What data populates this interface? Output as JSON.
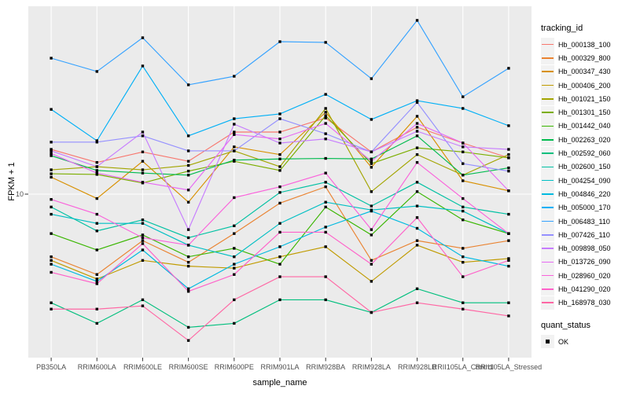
{
  "figure": {
    "x_axis": {
      "title": "sample_name"
    },
    "y_axis": {
      "title": "FPKM + 1",
      "tick_label": "10"
    },
    "legend": {
      "tracking_title": "tracking_id",
      "quant_title": "quant_status",
      "quant_items": [
        {
          "label": "OK"
        }
      ]
    },
    "style": {
      "panel_bg": "#EBEBEB",
      "grid_color": "#FFFFFF",
      "tick_color": "#333333",
      "tick_text_color": "#4D4D4D",
      "marker_color": "#000000",
      "legend_key_bg": "#F2F2F2"
    }
  },
  "chart_data": {
    "type": "line",
    "title": "",
    "xlabel": "sample_name",
    "ylabel": "FPKM + 1",
    "y_scale": "log10",
    "ylim": [
      1.5,
      90
    ],
    "y_ticks": [
      10
    ],
    "grid": "major-white-on-gray",
    "legend_position": "right",
    "marker": "black-square",
    "categories": [
      "PB350LA",
      "RRIM600LA",
      "RRIM600LE",
      "RRIM600SE",
      "RRIM600PE",
      "RRIM901LA",
      "RRIM928BA",
      "RRIM928LA",
      "RRIM928LB",
      "RRII105LA_Control",
      "RRII105LA_Stressed"
    ],
    "series": [
      {
        "name": "Hb_000138_100",
        "color": "#F8766D",
        "values": [
          16.9,
          14.5,
          16.4,
          14.7,
          20.7,
          20.7,
          24.4,
          16.4,
          21.9,
          18.2,
          15.3
        ]
      },
      {
        "name": "Hb_000329_800",
        "color": "#EA8331",
        "values": [
          4.8,
          3.9,
          5.8,
          4.5,
          6.3,
          9.0,
          10.9,
          4.6,
          5.8,
          5.3,
          5.8
        ]
      },
      {
        "name": "Hb_000347_430",
        "color": "#D89000",
        "values": [
          12.2,
          9.5,
          14.7,
          9.1,
          17.4,
          15.9,
          26.1,
          13.7,
          24.9,
          11.7,
          10.4
        ]
      },
      {
        "name": "Hb_000406_200",
        "color": "#C09B00",
        "values": [
          4.6,
          3.7,
          4.6,
          4.3,
          4.2,
          4.8,
          5.4,
          3.6,
          5.5,
          4.5,
          4.7
        ]
      },
      {
        "name": "Hb_001021_150",
        "color": "#A3A500",
        "values": [
          13.3,
          13.8,
          13.3,
          14.0,
          16.6,
          13.8,
          27.3,
          10.3,
          15.9,
          12.5,
          15.9
        ]
      },
      {
        "name": "Hb_001301_150",
        "color": "#7CAE00",
        "values": [
          12.7,
          12.6,
          11.4,
          13.1,
          14.7,
          13.2,
          25.1,
          14.3,
          17.2,
          16.4,
          15.3
        ]
      },
      {
        "name": "Hb_001442_040",
        "color": "#39B600",
        "values": [
          6.3,
          5.2,
          6.2,
          4.8,
          5.3,
          4.4,
          8.6,
          6.2,
          10.3,
          7.4,
          6.3
        ]
      },
      {
        "name": "Hb_002263_020",
        "color": "#00BB4E",
        "values": [
          15.7,
          13.2,
          12.8,
          12.5,
          14.9,
          15.1,
          15.2,
          15.1,
          19.8,
          12.5,
          13.6
        ]
      },
      {
        "name": "Hb_002592_060",
        "color": "#00BF7D",
        "values": [
          2.8,
          2.2,
          2.9,
          2.1,
          2.2,
          2.9,
          2.9,
          2.5,
          3.3,
          2.8,
          2.8
        ]
      },
      {
        "name": "Hb_002600_150",
        "color": "#00C1A3",
        "values": [
          8.6,
          6.5,
          7.4,
          6.0,
          6.9,
          10.2,
          11.5,
          8.7,
          11.5,
          8.6,
          7.9
        ]
      },
      {
        "name": "Hb_004254_090",
        "color": "#00BFC4",
        "values": [
          7.9,
          7.1,
          7.1,
          5.5,
          4.8,
          7.1,
          9.1,
          8.3,
          8.7,
          8.2,
          6.3
        ]
      },
      {
        "name": "Hb_004846_220",
        "color": "#00BAE0",
        "values": [
          4.4,
          3.6,
          5.2,
          3.3,
          4.4,
          5.4,
          6.8,
          8.2,
          6.7,
          4.8,
          4.3
        ]
      },
      {
        "name": "Hb_005000_170",
        "color": "#00B0F6",
        "values": [
          27.0,
          18.7,
          44.9,
          19.8,
          24.2,
          25.6,
          32.2,
          24.0,
          29.9,
          27.3,
          22.3
        ]
      },
      {
        "name": "Hb_006483_110",
        "color": "#35A2FF",
        "values": [
          49.2,
          42.1,
          62.5,
          36.0,
          39.8,
          59.7,
          59.2,
          38.7,
          76.6,
          31.3,
          43.7
        ]
      },
      {
        "name": "Hb_007426_110",
        "color": "#9590FF",
        "values": [
          18.4,
          18.4,
          19.8,
          16.6,
          16.6,
          24.2,
          20.3,
          16.4,
          29.3,
          14.3,
          13.1
        ]
      },
      {
        "name": "Hb_009898_050",
        "color": "#C77CFF",
        "values": [
          16.6,
          13.8,
          20.7,
          6.6,
          22.7,
          18.2,
          19.1,
          16.4,
          20.9,
          17.4,
          16.9
        ]
      },
      {
        "name": "Hb_013726_090",
        "color": "#E76BF3",
        "values": [
          16.1,
          12.8,
          11.5,
          10.5,
          20.1,
          19.1,
          22.9,
          14.7,
          22.9,
          18.2,
          10.4
        ]
      },
      {
        "name": "Hb_028960_020",
        "color": "#FA62DB",
        "values": [
          9.4,
          7.9,
          6.0,
          5.5,
          9.6,
          10.9,
          12.8,
          6.6,
          14.5,
          9.5,
          6.3
        ]
      },
      {
        "name": "Hb_041290_020",
        "color": "#FF61C9",
        "values": [
          4.0,
          3.5,
          5.6,
          3.2,
          3.9,
          6.4,
          6.4,
          4.4,
          7.6,
          3.8,
          4.6
        ]
      },
      {
        "name": "Hb_168978_030",
        "color": "#FF67A4",
        "values": [
          2.6,
          2.6,
          2.7,
          1.8,
          2.9,
          3.8,
          3.8,
          2.5,
          2.8,
          2.6,
          2.4
        ]
      }
    ]
  }
}
